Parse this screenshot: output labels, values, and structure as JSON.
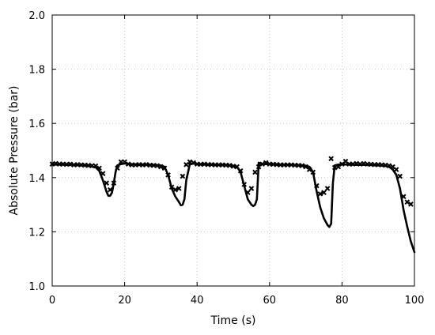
{
  "chart_data": {
    "type": "line",
    "xlabel": "Time (s)",
    "ylabel": "Absolute Pressure (bar)",
    "xlim": [
      0,
      100
    ],
    "ylim": [
      1.0,
      2.0
    ],
    "x_ticks": [
      0,
      20,
      40,
      60,
      80,
      100
    ],
    "y_ticks": [
      1.0,
      1.2,
      1.4,
      1.6,
      1.8,
      2.0
    ],
    "x_tick_labels": [
      "0",
      "20",
      "40",
      "60",
      "80",
      "100"
    ],
    "y_tick_labels": [
      "1.0",
      "1.2",
      "1.4",
      "1.6",
      "1.8",
      "2.0"
    ],
    "grid": true,
    "series": [
      {
        "style": "line",
        "color": "#000000",
        "x": [
          0,
          2,
          4,
          6,
          8,
          10,
          12,
          13,
          14,
          15,
          15.5,
          16,
          16.5,
          17,
          17.5,
          18,
          19,
          20,
          22,
          24,
          26,
          28,
          30,
          31,
          32,
          33,
          34,
          35,
          35.5,
          36,
          36.5,
          37,
          38,
          39,
          40,
          42,
          44,
          46,
          48,
          50,
          51,
          52,
          53,
          54,
          55,
          55.5,
          56,
          56.5,
          57,
          58,
          60,
          62,
          64,
          66,
          68,
          70,
          71,
          72,
          73,
          74,
          75,
          76,
          76.5,
          77,
          77.5,
          78,
          79,
          80,
          82,
          84,
          86,
          88,
          90,
          92,
          93,
          94,
          95,
          96,
          97,
          98,
          99,
          100
        ],
        "y": [
          1.448,
          1.448,
          1.447,
          1.446,
          1.445,
          1.443,
          1.438,
          1.425,
          1.39,
          1.348,
          1.333,
          1.333,
          1.345,
          1.38,
          1.42,
          1.445,
          1.45,
          1.452,
          1.45,
          1.448,
          1.448,
          1.447,
          1.445,
          1.44,
          1.41,
          1.36,
          1.33,
          1.31,
          1.298,
          1.3,
          1.32,
          1.39,
          1.45,
          1.452,
          1.45,
          1.448,
          1.448,
          1.447,
          1.446,
          1.444,
          1.44,
          1.42,
          1.37,
          1.32,
          1.3,
          1.295,
          1.3,
          1.32,
          1.455,
          1.45,
          1.45,
          1.448,
          1.447,
          1.447,
          1.446,
          1.444,
          1.44,
          1.42,
          1.35,
          1.29,
          1.25,
          1.225,
          1.218,
          1.23,
          1.38,
          1.445,
          1.448,
          1.449,
          1.448,
          1.447,
          1.447,
          1.446,
          1.445,
          1.443,
          1.44,
          1.43,
          1.41,
          1.36,
          1.28,
          1.22,
          1.165,
          1.125
        ]
      },
      {
        "style": "markers",
        "marker": "x",
        "color": "#000000",
        "x": [
          0,
          1,
          2,
          3,
          4,
          5,
          6,
          7,
          8,
          9,
          10,
          11,
          12,
          13,
          14,
          15,
          16,
          17,
          18,
          19,
          20,
          21,
          22,
          23,
          24,
          25,
          26,
          27,
          28,
          29,
          30,
          31,
          32,
          33,
          34,
          35,
          36,
          37,
          38,
          39,
          40,
          41,
          42,
          43,
          44,
          45,
          46,
          47,
          48,
          49,
          50,
          51,
          52,
          53,
          54,
          55,
          56,
          57,
          58,
          59,
          60,
          61,
          62,
          63,
          64,
          65,
          66,
          67,
          68,
          69,
          70,
          71,
          72,
          73,
          74,
          75,
          76,
          77,
          78,
          79,
          80,
          81,
          82,
          83,
          84,
          85,
          86,
          87,
          88,
          89,
          90,
          91,
          92,
          93,
          94,
          95,
          96,
          97,
          98,
          99
        ],
        "y": [
          1.45,
          1.452,
          1.45,
          1.45,
          1.449,
          1.45,
          1.447,
          1.448,
          1.447,
          1.446,
          1.445,
          1.444,
          1.443,
          1.435,
          1.415,
          1.38,
          1.355,
          1.38,
          1.435,
          1.458,
          1.458,
          1.45,
          1.447,
          1.447,
          1.448,
          1.447,
          1.448,
          1.446,
          1.445,
          1.444,
          1.44,
          1.435,
          1.41,
          1.365,
          1.355,
          1.36,
          1.405,
          1.448,
          1.458,
          1.455,
          1.45,
          1.449,
          1.45,
          1.448,
          1.448,
          1.447,
          1.447,
          1.447,
          1.446,
          1.445,
          1.442,
          1.44,
          1.425,
          1.375,
          1.345,
          1.36,
          1.42,
          1.44,
          1.45,
          1.455,
          1.45,
          1.449,
          1.448,
          1.447,
          1.447,
          1.447,
          1.447,
          1.446,
          1.445,
          1.444,
          1.44,
          1.43,
          1.42,
          1.37,
          1.34,
          1.345,
          1.36,
          1.47,
          1.437,
          1.44,
          1.45,
          1.46,
          1.45,
          1.45,
          1.452,
          1.45,
          1.452,
          1.45,
          1.449,
          1.448,
          1.448,
          1.447,
          1.446,
          1.444,
          1.44,
          1.43,
          1.405,
          1.33,
          1.31,
          1.302
        ]
      }
    ]
  }
}
